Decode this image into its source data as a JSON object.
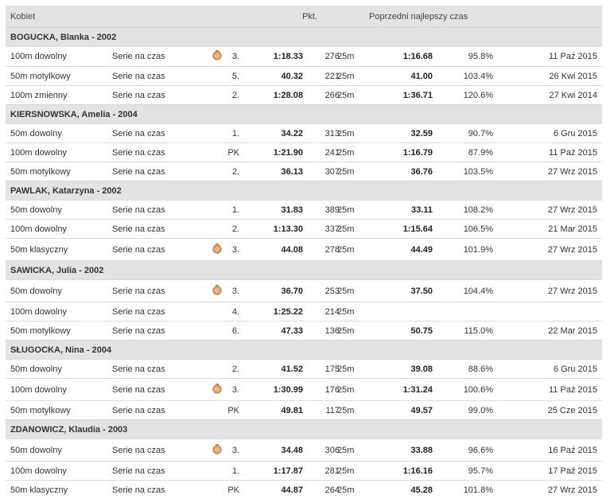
{
  "header": {
    "gender_label": "Kobiet",
    "points_label": "Pkt.",
    "prev_best_label": "Poprzedni najlepszy czas"
  },
  "medal_color": "#d9a06a",
  "groups": [
    {
      "athlete": "BOGUCKA, Blanka - 2002",
      "rows": [
        {
          "event": "100m dowolny",
          "round": "Serie na czas",
          "place": "3.",
          "medal": true,
          "time": "1:18.33",
          "points": "276",
          "course": "25m",
          "prev": "1:16.68",
          "pct": "95.8%",
          "date": "11 Paź 2015"
        },
        {
          "event": "50m motylkowy",
          "round": "Serie na czas",
          "place": "5.",
          "medal": false,
          "time": "40.32",
          "points": "221",
          "course": "25m",
          "prev": "41.00",
          "pct": "103.4%",
          "date": "26 Kwi 2015"
        },
        {
          "event": "100m zmienny",
          "round": "Serie na czas",
          "place": "2.",
          "medal": false,
          "time": "1:28.08",
          "points": "266",
          "course": "25m",
          "prev": "1:36.71",
          "pct": "120.6%",
          "date": "27 Kwi 2014"
        }
      ]
    },
    {
      "athlete": "KIERSNOWSKA, Amelia - 2004",
      "rows": [
        {
          "event": "50m dowolny",
          "round": "Serie na czas",
          "place": "1.",
          "medal": false,
          "time": "34.22",
          "points": "313",
          "course": "25m",
          "prev": "32.59",
          "pct": "90.7%",
          "date": "6 Gru 2015"
        },
        {
          "event": "100m dowolny",
          "round": "Serie na czas",
          "place": "PK",
          "medal": false,
          "time": "1:21.90",
          "points": "241",
          "course": "25m",
          "prev": "1:16.79",
          "pct": "87.9%",
          "date": "11 Paź 2015"
        },
        {
          "event": "50m motylkowy",
          "round": "Serie na czas",
          "place": "2.",
          "medal": false,
          "time": "36.13",
          "points": "307",
          "course": "25m",
          "prev": "36.76",
          "pct": "103.5%",
          "date": "27 Wrz 2015"
        }
      ]
    },
    {
      "athlete": "PAWLAK, Katarzyna - 2002",
      "rows": [
        {
          "event": "50m dowolny",
          "round": "Serie na czas",
          "place": "1.",
          "medal": false,
          "time": "31.83",
          "points": "389",
          "course": "25m",
          "prev": "33.11",
          "pct": "108.2%",
          "date": "27 Wrz 2015"
        },
        {
          "event": "100m dowolny",
          "round": "Serie na czas",
          "place": "2.",
          "medal": false,
          "time": "1:13.30",
          "points": "337",
          "course": "25m",
          "prev": "1:15.64",
          "pct": "106.5%",
          "date": "21 Mar 2015"
        },
        {
          "event": "50m klasyczny",
          "round": "Serie na czas",
          "place": "3.",
          "medal": true,
          "time": "44.08",
          "points": "278",
          "course": "25m",
          "prev": "44.49",
          "pct": "101.9%",
          "date": "27 Wrz 2015"
        }
      ]
    },
    {
      "athlete": "SAWICKA, Julia - 2002",
      "rows": [
        {
          "event": "50m dowolny",
          "round": "Serie na czas",
          "place": "3.",
          "medal": true,
          "time": "36.70",
          "points": "253",
          "course": "25m",
          "prev": "37.50",
          "pct": "104.4%",
          "date": "27 Wrz 2015"
        },
        {
          "event": "100m dowolny",
          "round": "Serie na czas",
          "place": "4.",
          "medal": false,
          "time": "1:25.22",
          "points": "214",
          "course": "25m",
          "prev": "",
          "pct": "",
          "date": ""
        },
        {
          "event": "50m motylkowy",
          "round": "Serie na czas",
          "place": "6.",
          "medal": false,
          "time": "47.33",
          "points": "136",
          "course": "25m",
          "prev": "50.75",
          "pct": "115.0%",
          "date": "22 Mar 2015"
        }
      ]
    },
    {
      "athlete": "SŁUGOCKA, Nina - 2004",
      "rows": [
        {
          "event": "50m dowolny",
          "round": "Serie na czas",
          "place": "2.",
          "medal": false,
          "time": "41.52",
          "points": "175",
          "course": "25m",
          "prev": "39.08",
          "pct": "88.6%",
          "date": "6 Gru 2015"
        },
        {
          "event": "100m dowolny",
          "round": "Serie na czas",
          "place": "3.",
          "medal": true,
          "time": "1:30.99",
          "points": "176",
          "course": "25m",
          "prev": "1:31.24",
          "pct": "100.6%",
          "date": "11 Paź 2015"
        },
        {
          "event": "50m motylkowy",
          "round": "Serie na czas",
          "place": "PK",
          "medal": false,
          "time": "49.81",
          "points": "117",
          "course": "25m",
          "prev": "49.57",
          "pct": "99.0%",
          "date": "25 Cze 2015"
        }
      ]
    },
    {
      "athlete": "ZDANOWICZ, Klaudia - 2003",
      "rows": [
        {
          "event": "50m dowolny",
          "round": "Serie na czas",
          "place": "3.",
          "medal": true,
          "time": "34.48",
          "points": "306",
          "course": "25m",
          "prev": "33.88",
          "pct": "96.6%",
          "date": "16 Paź 2015"
        },
        {
          "event": "100m dowolny",
          "round": "Serie na czas",
          "place": "1.",
          "medal": false,
          "time": "1:17.87",
          "points": "281",
          "course": "25m",
          "prev": "1:16.16",
          "pct": "95.7%",
          "date": "17 Paź 2015"
        },
        {
          "event": "50m klasyczny",
          "round": "Serie na czas",
          "place": "PK",
          "medal": false,
          "time": "44.87",
          "points": "264",
          "course": "25m",
          "prev": "45.28",
          "pct": "101.8%",
          "date": "27 Wrz 2015"
        }
      ]
    }
  ]
}
